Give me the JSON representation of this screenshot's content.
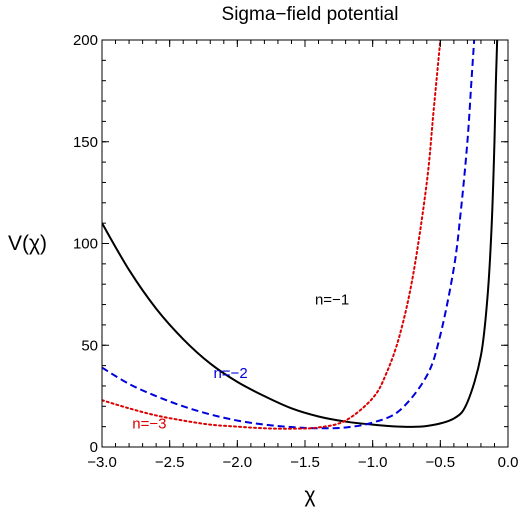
{
  "chart_data": {
    "type": "line",
    "title": "Sigma−field potential",
    "xlabel": "χ",
    "ylabel": "V(χ)",
    "xlim": [
      -3.0,
      0.0
    ],
    "ylim": [
      0,
      200
    ],
    "grid": false,
    "legend": "inline labels",
    "x_ticks": [
      -3.0,
      -2.5,
      -2.0,
      -1.5,
      -1.0,
      -0.5,
      0.0
    ],
    "x_tick_labels": [
      "−3.0",
      "−2.5",
      "−2.0",
      "−1.5",
      "−1.0",
      "−0.5",
      "0.0"
    ],
    "y_ticks": [
      0,
      50,
      100,
      150,
      200
    ],
    "y_tick_labels": [
      "0",
      "50",
      "100",
      "150",
      "200"
    ],
    "series": [
      {
        "name": "n=−1",
        "color": "#000000",
        "dash": "solid",
        "x": [
          -3.0,
          -2.8,
          -2.6,
          -2.4,
          -2.2,
          -2.0,
          -1.8,
          -1.6,
          -1.4,
          -1.2,
          -1.0,
          -0.8,
          -0.6,
          -0.4,
          -0.3,
          -0.2,
          -0.15,
          -0.12,
          -0.1,
          -0.09,
          -0.08
        ],
        "y": [
          110,
          87,
          68,
          53,
          41,
          32,
          25,
          19,
          15,
          12.5,
          11,
          10,
          10.3,
          14,
          22,
          45,
          75,
          110,
          150,
          178,
          200
        ]
      },
      {
        "name": "n=−2",
        "color": "#0000dd",
        "dash": "dashed",
        "x": [
          -3.0,
          -2.8,
          -2.6,
          -2.4,
          -2.2,
          -2.0,
          -1.8,
          -1.6,
          -1.4,
          -1.2,
          -1.0,
          -0.8,
          -0.6,
          -0.5,
          -0.4,
          -0.35,
          -0.3,
          -0.27,
          -0.25
        ],
        "y": [
          39,
          31,
          25,
          20,
          16,
          13,
          11,
          9.8,
          9.2,
          9.6,
          12,
          18,
          35,
          55,
          88,
          115,
          150,
          180,
          200
        ]
      },
      {
        "name": "n=−3",
        "color": "#dd0000",
        "dash": "dotted",
        "x": [
          -3.0,
          -2.8,
          -2.6,
          -2.4,
          -2.2,
          -2.0,
          -1.8,
          -1.6,
          -1.4,
          -1.2,
          -1.0,
          -0.9,
          -0.8,
          -0.7,
          -0.6,
          -0.55,
          -0.5
        ],
        "y": [
          23,
          19,
          15.5,
          13,
          11,
          10,
          9.2,
          9,
          9.6,
          13,
          24,
          36,
          55,
          85,
          130,
          165,
          200
        ]
      }
    ],
    "annotations": [
      {
        "text": "n=−1",
        "x": -1.3,
        "y": 70,
        "color": "#000000"
      },
      {
        "text": "n=−2",
        "x": -2.05,
        "y": 34,
        "color": "#0000dd"
      },
      {
        "text": "n=−3",
        "x": -2.65,
        "y": 9,
        "color": "#dd0000"
      }
    ]
  }
}
